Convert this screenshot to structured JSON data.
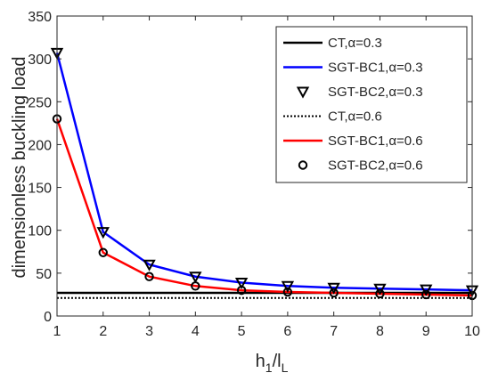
{
  "chart_data": {
    "type": "line",
    "xlabel": {
      "base": "h",
      "sub1": "1",
      "mid": "/l",
      "sub2": "L"
    },
    "ylabel": "dimensionless buckling load",
    "xlim": [
      1,
      10
    ],
    "ylim": [
      0,
      350
    ],
    "xticks": [
      "1",
      "2",
      "3",
      "4",
      "5",
      "6",
      "7",
      "8",
      "9",
      "10"
    ],
    "yticks": [
      "0",
      "50",
      "100",
      "150",
      "200",
      "250",
      "300",
      "350"
    ],
    "grid": false,
    "legend_position": "top-right",
    "x": [
      1,
      2,
      3,
      4,
      5,
      6,
      7,
      8,
      9,
      10
    ],
    "series": [
      {
        "name": "CT,",
        "alpha": "α=0.3",
        "style": "solid",
        "marker": "none",
        "color": "#000000",
        "values": [
          27,
          27,
          27,
          27,
          27,
          27,
          27,
          27,
          27,
          27
        ]
      },
      {
        "name": "SGT-BC1,",
        "alpha": "α=0.3",
        "style": "solid",
        "marker": "none",
        "color": "#0000ff",
        "values": [
          307,
          98,
          60,
          46,
          39,
          35,
          33,
          32,
          31,
          30
        ]
      },
      {
        "name": "SGT-BC2,",
        "alpha": "α=0.3",
        "style": "none",
        "marker": "triangle-down",
        "color": "#000000",
        "values": [
          307,
          98,
          60,
          46,
          39,
          35,
          33,
          32,
          31,
          30
        ]
      },
      {
        "name": "CT,",
        "alpha": "α=0.6",
        "style": "dotted",
        "marker": "none",
        "color": "#000000",
        "values": [
          21,
          21,
          21,
          21,
          21,
          21,
          21,
          21,
          21,
          21
        ]
      },
      {
        "name": "SGT-BC1,",
        "alpha": "α=0.6",
        "style": "solid",
        "marker": "none",
        "color": "#ff0000",
        "values": [
          230,
          74,
          46,
          35,
          30,
          28,
          27,
          26,
          25,
          24
        ]
      },
      {
        "name": "SGT-BC2,",
        "alpha": "α=0.6",
        "style": "none",
        "marker": "circle",
        "color": "#000000",
        "values": [
          230,
          74,
          46,
          35,
          30,
          28,
          27,
          26,
          25,
          24
        ]
      }
    ]
  }
}
